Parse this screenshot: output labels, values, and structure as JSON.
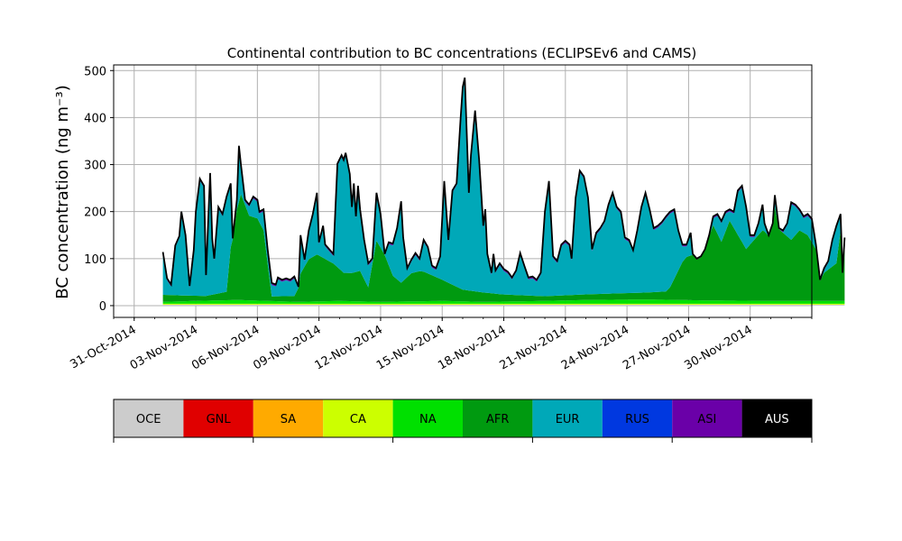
{
  "chart_data": {
    "type": "area",
    "title": "Continental contribution to BC concentrations (ECLIPSEv6 and CAMS)",
    "xlabel": "",
    "ylabel": "BC concentration (ng m⁻³)",
    "ylim": [
      -25,
      512
    ],
    "xlim": [
      "2014-10-30",
      "2014-12-03"
    ],
    "grid": true,
    "yticks": [
      "0",
      "100",
      "200",
      "300",
      "400",
      "500"
    ],
    "xticks": [
      "31-Oct-2014",
      "03-Nov-2014",
      "06-Nov-2014",
      "09-Nov-2014",
      "12-Nov-2014",
      "15-Nov-2014",
      "18-Nov-2014",
      "21-Nov-2014",
      "24-Nov-2014",
      "27-Nov-2014",
      "30-Nov-2014"
    ],
    "x_start": "2014-11-01",
    "x_end": "2014-12-02",
    "total": [
      [
        1.4,
        114
      ],
      [
        1.6,
        58
      ],
      [
        1.8,
        45
      ],
      [
        2.0,
        128
      ],
      [
        2.2,
        148
      ],
      [
        2.3,
        200
      ],
      [
        2.5,
        150
      ],
      [
        2.7,
        42
      ],
      [
        2.9,
        118
      ],
      [
        3.0,
        200
      ],
      [
        3.2,
        270
      ],
      [
        3.4,
        255
      ],
      [
        3.5,
        65
      ],
      [
        3.7,
        282
      ],
      [
        3.8,
        142
      ],
      [
        3.9,
        100
      ],
      [
        4.1,
        210
      ],
      [
        4.3,
        195
      ],
      [
        4.5,
        232
      ],
      [
        4.7,
        260
      ],
      [
        4.8,
        143
      ],
      [
        5.0,
        225
      ],
      [
        5.1,
        340
      ],
      [
        5.2,
        300
      ],
      [
        5.4,
        225
      ],
      [
        5.6,
        215
      ],
      [
        5.8,
        232
      ],
      [
        6.0,
        225
      ],
      [
        6.1,
        200
      ],
      [
        6.3,
        205
      ],
      [
        6.5,
        120
      ],
      [
        6.7,
        48
      ],
      [
        6.9,
        45
      ],
      [
        7.0,
        60
      ],
      [
        7.2,
        55
      ],
      [
        7.4,
        58
      ],
      [
        7.6,
        55
      ],
      [
        7.8,
        62
      ],
      [
        8.0,
        40
      ],
      [
        8.1,
        150
      ],
      [
        8.3,
        98
      ],
      [
        8.5,
        160
      ],
      [
        8.7,
        195
      ],
      [
        8.9,
        240
      ],
      [
        9.0,
        135
      ],
      [
        9.2,
        170
      ],
      [
        9.3,
        130
      ],
      [
        9.5,
        120
      ],
      [
        9.7,
        110
      ],
      [
        9.9,
        302
      ],
      [
        10.1,
        320
      ],
      [
        10.2,
        310
      ],
      [
        10.3,
        325
      ],
      [
        10.5,
        280
      ],
      [
        10.6,
        210
      ],
      [
        10.7,
        260
      ],
      [
        10.8,
        190
      ],
      [
        10.9,
        255
      ],
      [
        11.0,
        205
      ],
      [
        11.2,
        140
      ],
      [
        11.4,
        90
      ],
      [
        11.6,
        100
      ],
      [
        11.8,
        240
      ],
      [
        12.0,
        195
      ],
      [
        12.2,
        110
      ],
      [
        12.4,
        135
      ],
      [
        12.6,
        132
      ],
      [
        12.8,
        165
      ],
      [
        13.0,
        222
      ],
      [
        13.1,
        145
      ],
      [
        13.3,
        80
      ],
      [
        13.5,
        98
      ],
      [
        13.7,
        112
      ],
      [
        13.9,
        100
      ],
      [
        14.1,
        140
      ],
      [
        14.3,
        125
      ],
      [
        14.5,
        85
      ],
      [
        14.7,
        80
      ],
      [
        14.9,
        105
      ],
      [
        15.1,
        265
      ],
      [
        15.3,
        140
      ],
      [
        15.5,
        245
      ],
      [
        15.7,
        260
      ],
      [
        15.9,
        400
      ],
      [
        16.0,
        465
      ],
      [
        16.1,
        485
      ],
      [
        16.3,
        240
      ],
      [
        16.4,
        320
      ],
      [
        16.6,
        415
      ],
      [
        16.8,
        310
      ],
      [
        17.0,
        170
      ],
      [
        17.1,
        205
      ],
      [
        17.2,
        110
      ],
      [
        17.4,
        70
      ],
      [
        17.5,
        110
      ],
      [
        17.6,
        75
      ],
      [
        17.8,
        90
      ],
      [
        18.0,
        78
      ],
      [
        18.2,
        72
      ],
      [
        18.4,
        60
      ],
      [
        18.6,
        75
      ],
      [
        18.8,
        112
      ],
      [
        19.0,
        85
      ],
      [
        19.2,
        60
      ],
      [
        19.4,
        62
      ],
      [
        19.6,
        55
      ],
      [
        19.8,
        70
      ],
      [
        20.0,
        200
      ],
      [
        20.2,
        265
      ],
      [
        20.4,
        105
      ],
      [
        20.6,
        95
      ],
      [
        20.8,
        130
      ],
      [
        21.0,
        138
      ],
      [
        21.2,
        130
      ],
      [
        21.3,
        100
      ],
      [
        21.5,
        230
      ],
      [
        21.7,
        287
      ],
      [
        21.9,
        275
      ],
      [
        22.1,
        230
      ],
      [
        22.3,
        120
      ],
      [
        22.5,
        155
      ],
      [
        22.7,
        165
      ],
      [
        22.9,
        180
      ],
      [
        23.1,
        215
      ],
      [
        23.3,
        240
      ],
      [
        23.5,
        210
      ],
      [
        23.7,
        200
      ],
      [
        23.9,
        145
      ],
      [
        24.1,
        140
      ],
      [
        24.3,
        118
      ],
      [
        24.5,
        160
      ],
      [
        24.7,
        210
      ],
      [
        24.9,
        240
      ],
      [
        25.1,
        205
      ],
      [
        25.3,
        165
      ],
      [
        25.5,
        170
      ],
      [
        25.7,
        178
      ],
      [
        25.9,
        190
      ],
      [
        26.1,
        200
      ],
      [
        26.3,
        205
      ],
      [
        26.5,
        160
      ],
      [
        26.7,
        130
      ],
      [
        26.9,
        130
      ],
      [
        27.1,
        155
      ],
      [
        27.2,
        110
      ],
      [
        27.4,
        100
      ],
      [
        27.6,
        105
      ],
      [
        27.8,
        120
      ],
      [
        28.0,
        150
      ],
      [
        28.2,
        190
      ],
      [
        28.4,
        195
      ],
      [
        28.6,
        180
      ],
      [
        28.8,
        200
      ],
      [
        29.0,
        205
      ],
      [
        29.2,
        200
      ],
      [
        29.4,
        245
      ],
      [
        29.6,
        255
      ],
      [
        29.8,
        210
      ],
      [
        30.0,
        150
      ],
      [
        30.2,
        150
      ],
      [
        30.4,
        175
      ],
      [
        30.6,
        215
      ],
      [
        30.7,
        175
      ],
      [
        30.9,
        150
      ],
      [
        31.1,
        175
      ],
      [
        31.2,
        235
      ],
      [
        31.4,
        165
      ],
      [
        31.6,
        160
      ],
      [
        31.8,
        175
      ],
      [
        32.0,
        220
      ],
      [
        32.2,
        215
      ],
      [
        32.4,
        205
      ],
      [
        32.6,
        190
      ],
      [
        32.8,
        195
      ],
      [
        33.0,
        185
      ],
      [
        33.2,
        130
      ],
      [
        33.4,
        55
      ],
      [
        33.6,
        80
      ],
      [
        33.8,
        95
      ],
      [
        34.0,
        140
      ],
      [
        34.2,
        170
      ],
      [
        34.4,
        195
      ],
      [
        34.5,
        70
      ],
      [
        34.6,
        145
      ]
    ],
    "contribution_layers": [
      {
        "name": "NA",
        "color": "#00e000",
        "points": [
          [
            1.4,
            8
          ],
          [
            3.0,
            10
          ],
          [
            5.0,
            12
          ],
          [
            8.0,
            8
          ],
          [
            10.0,
            10
          ],
          [
            12.0,
            8
          ],
          [
            15.0,
            10
          ],
          [
            17.0,
            8
          ],
          [
            20.0,
            10
          ],
          [
            22.0,
            12
          ],
          [
            25.0,
            13
          ],
          [
            28.0,
            11
          ],
          [
            31.0,
            10
          ],
          [
            34.6,
            10
          ]
        ]
      },
      {
        "name": "AFR",
        "color": "#009a10",
        "points": [
          [
            1.4,
            15
          ],
          [
            2.5,
            12
          ],
          [
            3.5,
            10
          ],
          [
            4.5,
            18
          ],
          [
            4.8,
            160
          ],
          [
            5.2,
            225
          ],
          [
            5.6,
            180
          ],
          [
            6.0,
            175
          ],
          [
            6.3,
            150
          ],
          [
            6.5,
            80
          ],
          [
            6.7,
            10
          ],
          [
            7.8,
            12
          ],
          [
            8.1,
            60
          ],
          [
            8.5,
            90
          ],
          [
            8.9,
            100
          ],
          [
            9.3,
            90
          ],
          [
            9.7,
            80
          ],
          [
            10.2,
            60
          ],
          [
            10.6,
            60
          ],
          [
            11.0,
            65
          ],
          [
            11.4,
            30
          ],
          [
            11.8,
            130
          ],
          [
            12.2,
            100
          ],
          [
            12.6,
            55
          ],
          [
            13.0,
            40
          ],
          [
            13.5,
            60
          ],
          [
            14.0,
            65
          ],
          [
            14.5,
            55
          ],
          [
            15.0,
            45
          ],
          [
            15.5,
            35
          ],
          [
            16.0,
            25
          ],
          [
            17.0,
            20
          ],
          [
            18.0,
            15
          ],
          [
            20.0,
            10
          ],
          [
            22.0,
            12
          ],
          [
            25.0,
            15
          ],
          [
            26.0,
            18
          ],
          [
            26.8,
            90
          ],
          [
            27.4,
            100
          ],
          [
            27.8,
            115
          ],
          [
            28.2,
            160
          ],
          [
            28.6,
            125
          ],
          [
            29.0,
            170
          ],
          [
            29.4,
            140
          ],
          [
            29.8,
            110
          ],
          [
            30.2,
            130
          ],
          [
            30.6,
            150
          ],
          [
            31.0,
            140
          ],
          [
            31.2,
            200
          ],
          [
            31.6,
            145
          ],
          [
            32.0,
            130
          ],
          [
            32.4,
            150
          ],
          [
            32.8,
            140
          ],
          [
            33.2,
            110
          ],
          [
            33.6,
            60
          ],
          [
            34.2,
            80
          ],
          [
            34.4,
            150
          ],
          [
            34.6,
            140
          ]
        ]
      }
    ],
    "legend": {
      "placement": "below",
      "entries": [
        {
          "name": "OCE",
          "color": "#cccccc"
        },
        {
          "name": "GNL",
          "color": "#e00000"
        },
        {
          "name": "SA",
          "color": "#ffaa00"
        },
        {
          "name": "CA",
          "color": "#ccff00"
        },
        {
          "name": "NA",
          "color": "#00e000"
        },
        {
          "name": "AFR",
          "color": "#009a10"
        },
        {
          "name": "EUR",
          "color": "#00a8b8"
        },
        {
          "name": "RUS",
          "color": "#0038e0"
        },
        {
          "name": "ASI",
          "color": "#6a00a8"
        },
        {
          "name": "AUS",
          "color": "#000000"
        }
      ]
    }
  }
}
